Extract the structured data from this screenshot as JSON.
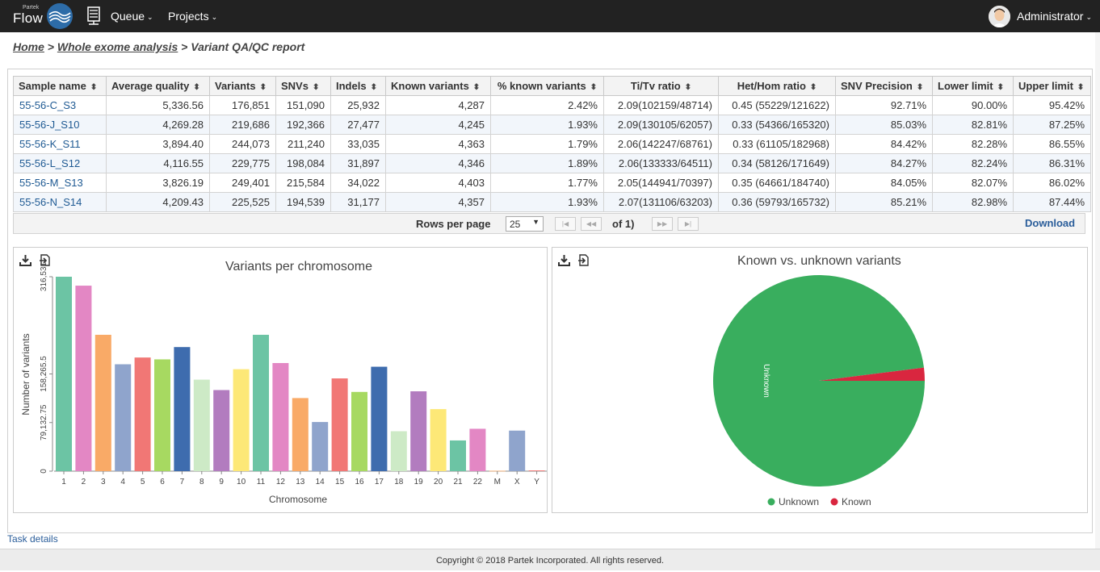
{
  "app": {
    "brand_small": "Partek",
    "brand": "Flow"
  },
  "nav": {
    "queue": "Queue",
    "projects": "Projects",
    "user": "Administrator"
  },
  "breadcrumb": {
    "home": "Home",
    "sep1": " > ",
    "project": "Whole exome analysis",
    "sep2": " > ",
    "current": "Variant QA/QC report"
  },
  "table": {
    "columns": [
      "Sample name",
      "Average quality",
      "Variants",
      "SNVs",
      "Indels",
      "Known variants",
      "% known variants",
      "Ti/Tv ratio",
      "Het/Hom ratio",
      "SNV Precision",
      "Lower limit",
      "Upper limit"
    ],
    "rows": [
      [
        "55-56-C_S3",
        "5,336.56",
        "176,851",
        "151,090",
        "25,932",
        "4,287",
        "2.42%",
        "2.09(102159/48714)",
        "0.45 (55229/121622)",
        "92.71%",
        "90.00%",
        "95.42%"
      ],
      [
        "55-56-J_S10",
        "4,269.28",
        "219,686",
        "192,366",
        "27,477",
        "4,245",
        "1.93%",
        "2.09(130105/62057)",
        "0.33 (54366/165320)",
        "85.03%",
        "82.81%",
        "87.25%"
      ],
      [
        "55-56-K_S11",
        "3,894.40",
        "244,073",
        "211,240",
        "33,035",
        "4,363",
        "1.79%",
        "2.06(142247/68761)",
        "0.33 (61105/182968)",
        "84.42%",
        "82.28%",
        "86.55%"
      ],
      [
        "55-56-L_S12",
        "4,116.55",
        "229,775",
        "198,084",
        "31,897",
        "4,346",
        "1.89%",
        "2.06(133333/64511)",
        "0.34 (58126/171649)",
        "84.27%",
        "82.24%",
        "86.31%"
      ],
      [
        "55-56-M_S13",
        "3,826.19",
        "249,401",
        "215,584",
        "34,022",
        "4,403",
        "1.77%",
        "2.05(144941/70397)",
        "0.35 (64661/184740)",
        "84.05%",
        "82.07%",
        "86.02%"
      ],
      [
        "55-56-N_S14",
        "4,209.43",
        "225,525",
        "194,539",
        "31,177",
        "4,357",
        "1.93%",
        "2.07(131106/63203)",
        "0.36 (59793/165732)",
        "85.21%",
        "82.98%",
        "87.44%"
      ]
    ]
  },
  "pager": {
    "rows_per_page_label": "Rows per page",
    "rows_per_page": "25",
    "of_label": "of 1)",
    "download": "Download"
  },
  "chart_data": [
    {
      "type": "bar",
      "title": "Variants per chromosome",
      "xlabel": "Chromosome",
      "ylabel": "Number of variants",
      "yticks": [
        "0",
        "79,132.75",
        "158,265.5",
        "316,531"
      ],
      "ylim": [
        0,
        316531
      ],
      "categories": [
        "1",
        "2",
        "3",
        "4",
        "5",
        "6",
        "7",
        "8",
        "9",
        "10",
        "11",
        "12",
        "13",
        "14",
        "15",
        "16",
        "17",
        "18",
        "19",
        "20",
        "21",
        "22",
        "M",
        "X",
        "Y"
      ],
      "values": [
        316531,
        302000,
        222000,
        174000,
        185000,
        182000,
        202000,
        149000,
        132000,
        166000,
        222000,
        176000,
        119000,
        80000,
        151000,
        129000,
        170000,
        65000,
        130000,
        101000,
        50000,
        69000,
        600,
        66000,
        1200
      ],
      "colors": [
        "#6cc4a4",
        "#e387c4",
        "#f9aa67",
        "#8fa4cc",
        "#f17775",
        "#a7d961",
        "#3e6cae",
        "#cdeac6",
        "#b27cbf",
        "#fde877",
        "#6cc4a4",
        "#e387c4",
        "#f9aa67",
        "#8fa4cc",
        "#f17775",
        "#a7d961",
        "#3e6cae",
        "#cdeac6",
        "#b27cbf",
        "#fde877",
        "#6cc4a4",
        "#e387c4",
        "#f9aa67",
        "#8fa4cc",
        "#f17775"
      ]
    },
    {
      "type": "pie",
      "title": "Known vs. unknown variants",
      "slices": [
        {
          "name": "Unknown",
          "value": 98.0,
          "color": "#39ae5e"
        },
        {
          "name": "Known",
          "value": 2.0,
          "color": "#d9263f"
        }
      ]
    }
  ],
  "task_details": "Task details",
  "footer": "Copyright © 2018 Partek Incorporated. All rights reserved."
}
